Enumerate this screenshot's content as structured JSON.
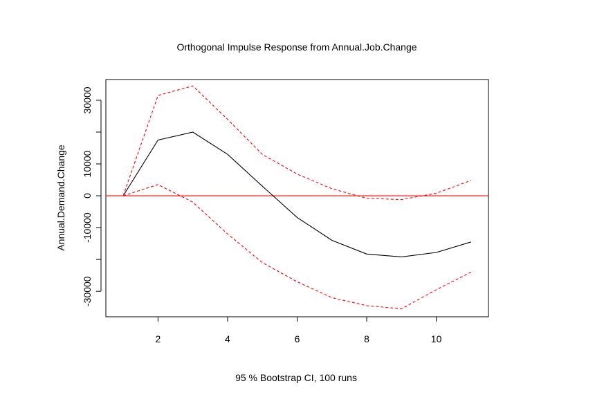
{
  "chart_data": {
    "type": "line",
    "title": "Orthogonal Impulse Response from Annual.Job.Change",
    "xlabel": "95 % Bootstrap CI,  100 runs",
    "ylabel": "Annual.Demand.Change",
    "xlim": [
      0.5,
      11.5
    ],
    "ylim": [
      -38000,
      36500
    ],
    "x_ticks": [
      2,
      4,
      6,
      8,
      10
    ],
    "y_ticks": [
      -30000,
      -20000,
      -10000,
      0,
      10000,
      20000,
      30000
    ],
    "y_tick_labels": [
      "-30000",
      "",
      "-10000",
      "0",
      "10000",
      "",
      "30000"
    ],
    "x": [
      1,
      2,
      3,
      4,
      5,
      6,
      7,
      8,
      9,
      10,
      11
    ],
    "series": [
      {
        "role": "response",
        "color": "#000000",
        "dash": "solid",
        "values": [
          0,
          17500,
          20000,
          13000,
          3000,
          -6800,
          -14000,
          -18300,
          -19200,
          -17800,
          -14500
        ]
      },
      {
        "role": "upper",
        "color": "#ff0000",
        "dash": "dashed",
        "values": [
          0,
          31500,
          34500,
          24000,
          13000,
          6800,
          2200,
          -800,
          -1200,
          800,
          4800
        ]
      },
      {
        "role": "lower",
        "color": "#ff0000",
        "dash": "dashed",
        "values": [
          0,
          3500,
          -2000,
          -12000,
          -21000,
          -27000,
          -32000,
          -34500,
          -35500,
          -29500,
          -24000
        ]
      }
    ],
    "reference_line": {
      "y": 0,
      "color": "#ff0000"
    },
    "grid": false,
    "legend": "none"
  }
}
